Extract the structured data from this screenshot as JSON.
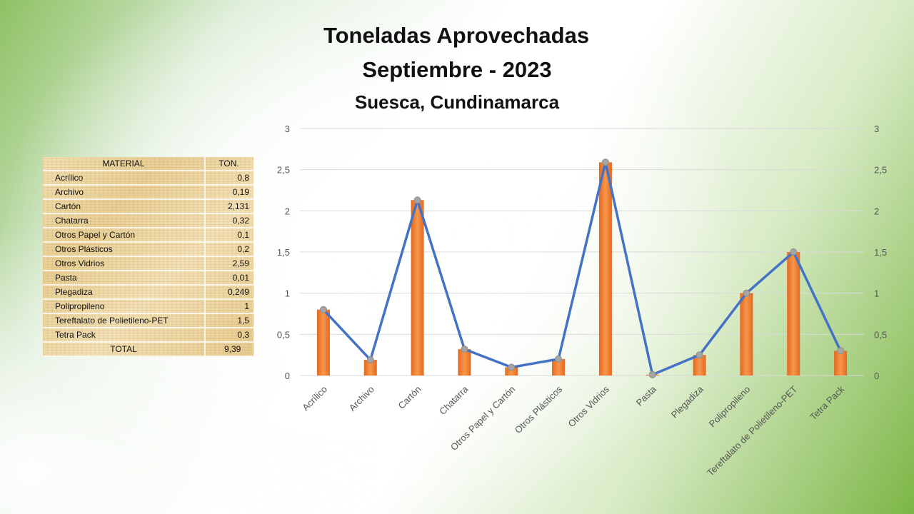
{
  "titles": {
    "line1": "Toneladas Aprovechadas",
    "line2": "Septiembre - 2023",
    "line3": "Suesca, Cundinamarca"
  },
  "table": {
    "header": [
      "MATERIAL",
      "TON."
    ],
    "rows": [
      [
        "Acrílico",
        "0,8"
      ],
      [
        "Archivo",
        "0,19"
      ],
      [
        "Cartón",
        "2,131"
      ],
      [
        "Chatarra",
        "0,32"
      ],
      [
        "Otros Papel y Cartón",
        "0,1"
      ],
      [
        "Otros Plásticos",
        "0,2"
      ],
      [
        "Otros Vidrios",
        "2,59"
      ],
      [
        "Pasta",
        "0,01"
      ],
      [
        "Plegadiza",
        "0,249"
      ],
      [
        "Polipropileno",
        "1"
      ],
      [
        "Tereftalato de Polietileno-PET",
        "1,5"
      ],
      [
        "Tetra Pack",
        "0,3"
      ]
    ],
    "total": [
      "TOTAL",
      "9,39"
    ]
  },
  "chart_data": {
    "type": "bar",
    "title": "",
    "categories": [
      "Acrílico",
      "Archivo",
      "Cartón",
      "Chatarra",
      "Otros Papel y Cartón",
      "Otros Plásticos",
      "Otros Vidrios",
      "Pasta",
      "Plegadiza",
      "Polipropileno",
      "Tereftalato de Polietileno-PET",
      "Tetra Pack"
    ],
    "series": [
      {
        "type": "bar",
        "values": [
          0.8,
          0.19,
          2.131,
          0.32,
          0.1,
          0.2,
          2.59,
          0.01,
          0.249,
          1,
          1.5,
          0.3
        ],
        "color": "#ed7d31"
      },
      {
        "type": "line",
        "values": [
          0.8,
          0.19,
          2.131,
          0.32,
          0.1,
          0.2,
          2.59,
          0.01,
          0.249,
          1,
          1.5,
          0.3
        ],
        "color": "#4472c4",
        "marker_color": "#a5a5a5"
      }
    ],
    "ylim": [
      0,
      3
    ],
    "yticks": [
      "0",
      "0,5",
      "1",
      "1,5",
      "2",
      "2,5",
      "3"
    ],
    "secondary_ylim": [
      0,
      3
    ],
    "secondary_yticks": [
      "0",
      "0,5",
      "1",
      "1,5",
      "2",
      "2,5",
      "3"
    ],
    "grid": true,
    "legend": "none",
    "gridline_color": "#d9d9d9"
  }
}
